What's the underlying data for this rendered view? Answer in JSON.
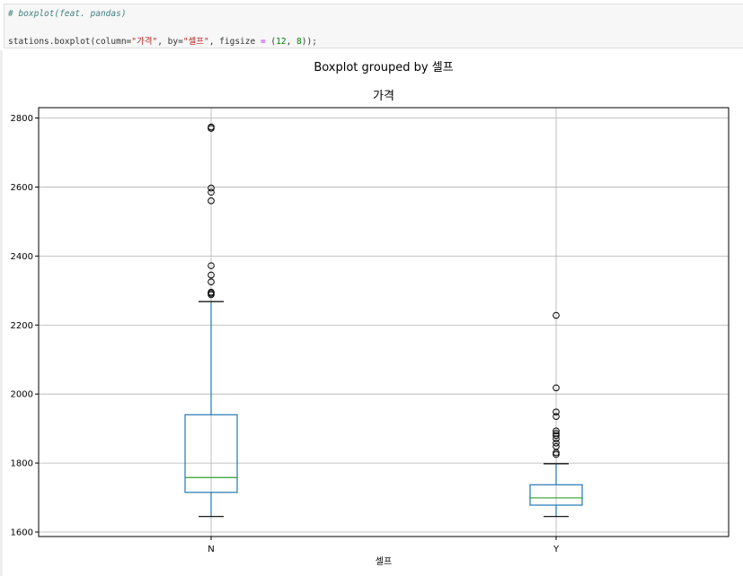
{
  "notebook": {
    "comment_line": "# boxplot(feat. pandas)",
    "code": {
      "obj": "stations.boxplot(column=",
      "column_value": "\"가격\"",
      "sep1": ", by=",
      "by_value": "\"셀프\"",
      "sep2": ", figsize ",
      "eq": "=",
      "paren_open": " (",
      "n1": "12",
      "comma": ", ",
      "n2": "8",
      "end": "));"
    }
  },
  "chart_data": {
    "type": "boxplot",
    "suptitle": "Boxplot grouped by 셀프",
    "title": "가격",
    "xlabel": "셀프",
    "ylabel": "",
    "ylim": [
      1587,
      2830
    ],
    "yticks": [
      1600,
      1800,
      2000,
      2200,
      2400,
      2600,
      2800
    ],
    "grid": true,
    "categories": [
      "N",
      "Y"
    ],
    "boxes": [
      {
        "name": "N",
        "whisker_low": 1645,
        "q1": 1715,
        "median": 1758,
        "q3": 1940,
        "whisker_high": 2268,
        "outliers": [
          2288,
          2292,
          2295,
          2325,
          2345,
          2372,
          2560,
          2585,
          2597,
          2770,
          2774
        ]
      },
      {
        "name": "Y",
        "whisker_low": 1645,
        "q1": 1678,
        "median": 1699,
        "q3": 1737,
        "whisker_high": 1798,
        "outliers": [
          1825,
          1830,
          1848,
          1858,
          1870,
          1880,
          1886,
          1893,
          1935,
          1948,
          2018,
          2228
        ]
      }
    ],
    "colors": {
      "box": "#1f77b4",
      "median": "#2ca02c",
      "grid": "#b0b0b0",
      "outlier": "#000000"
    }
  }
}
